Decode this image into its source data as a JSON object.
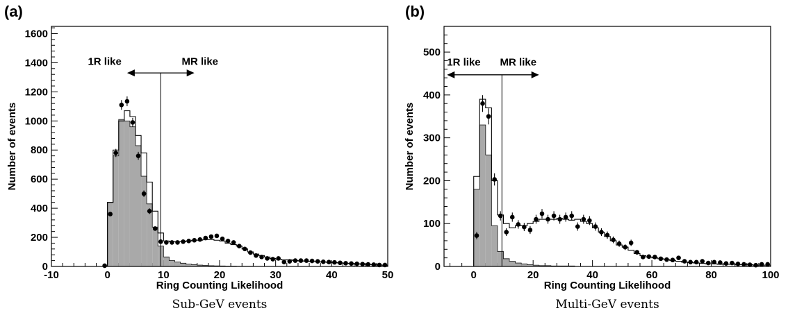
{
  "chart_data": [
    {
      "type": "histogram",
      "panel_label": "(a)",
      "caption": "Sub-GeV events",
      "xlabel": "Ring Counting Likelihood",
      "ylabel": "Number of events",
      "xlim": [
        -10,
        50
      ],
      "ylim": [
        0,
        1650
      ],
      "xticks": [
        -10,
        0,
        10,
        20,
        30,
        40,
        50
      ],
      "yticks": [
        0,
        200,
        400,
        600,
        800,
        1000,
        1200,
        1400,
        1600
      ],
      "cut_x": 9.5,
      "region_labels": {
        "left": "1R like",
        "right": "MR like"
      },
      "arrow": {
        "y": 1330,
        "x_left": 3.5,
        "x_right": 15.5,
        "label_y": 1410,
        "left_label_x": 2.5,
        "right_label_x": 16.5
      },
      "bin_width": 1,
      "bin_edges_start": 0,
      "mc_total": [
        440,
        800,
        1000,
        1070,
        1030,
        900,
        780,
        580,
        380,
        230,
        175,
        170,
        170,
        170,
        175,
        180,
        180,
        185,
        185,
        180,
        175,
        160,
        150,
        140,
        120,
        100,
        85,
        75,
        65,
        55,
        50,
        45,
        45,
        40,
        38,
        36,
        34,
        32,
        30,
        28,
        26,
        24,
        22,
        20,
        18,
        16,
        14,
        12,
        10,
        8
      ],
      "mc_shaded": [
        440,
        760,
        1010,
        1000,
        960,
        830,
        620,
        430,
        270,
        140,
        65,
        40,
        30,
        22,
        16,
        12,
        9,
        7,
        5,
        4,
        3,
        2,
        2,
        1,
        1,
        1,
        0,
        0,
        0,
        0,
        0,
        0,
        0,
        0,
        0,
        0,
        0,
        0,
        0,
        0,
        0,
        0,
        0,
        0,
        0,
        0,
        0,
        0,
        0,
        0
      ],
      "data_points": {
        "x": [
          -0.5,
          0.5,
          1.5,
          2.5,
          3.5,
          4.5,
          5.5,
          6.5,
          7.5,
          8.5,
          9.5,
          10.5,
          11.5,
          12.5,
          13.5,
          14.5,
          15.5,
          16.5,
          17.5,
          18.5,
          19.5,
          20.5,
          21.5,
          22.5,
          23.5,
          24.5,
          25.5,
          26.5,
          27.5,
          28.5,
          29.5,
          30.5,
          31.5,
          32.5,
          33.5,
          34.5,
          35.5,
          36.5,
          37.5,
          38.5,
          39.5,
          40.5,
          41.5,
          42.5,
          43.5,
          44.5,
          45.5,
          46.5,
          47.5,
          48.5,
          49.5
        ],
        "y": [
          5,
          360,
          780,
          1110,
          1135,
          990,
          760,
          500,
          380,
          260,
          170,
          165,
          165,
          165,
          170,
          175,
          180,
          185,
          195,
          205,
          210,
          190,
          175,
          165,
          140,
          120,
          95,
          75,
          65,
          55,
          50,
          55,
          30,
          35,
          40,
          40,
          40,
          38,
          35,
          32,
          30,
          28,
          25,
          22,
          20,
          18,
          16,
          14,
          12,
          10,
          10
        ]
      }
    },
    {
      "type": "histogram",
      "panel_label": "(b)",
      "caption": "Multi-GeV events",
      "xlabel": "Ring Counting Likelihood",
      "ylabel": "Number of events",
      "xlim": [
        -10,
        100
      ],
      "ylim": [
        0,
        560
      ],
      "xticks": [
        0,
        20,
        40,
        60,
        80,
        100
      ],
      "yticks": [
        0,
        100,
        200,
        300,
        400,
        500
      ],
      "cut_x": 9.5,
      "region_labels": {
        "left": "1R like",
        "right": "MR like"
      },
      "arrow": {
        "y": 447,
        "x_left": -9,
        "x_right": 22,
        "label_y": 477,
        "left_label_x": -9,
        "right_label_x": 15
      },
      "bin_width": 2,
      "bin_edges_start": 0,
      "mc_total": [
        210,
        390,
        370,
        200,
        120,
        100,
        90,
        95,
        95,
        100,
        105,
        110,
        110,
        110,
        112,
        110,
        108,
        110,
        105,
        100,
        90,
        80,
        70,
        60,
        50,
        45,
        38,
        30,
        25,
        22,
        20,
        18,
        16,
        14,
        12,
        10,
        9,
        8,
        7,
        6,
        6,
        5,
        5,
        5,
        4,
        4,
        4,
        3,
        3,
        3
      ],
      "mc_shaded": [
        180,
        330,
        260,
        95,
        35,
        18,
        12,
        8,
        6,
        4,
        3,
        2,
        2,
        1,
        1,
        1,
        1,
        0,
        0,
        0,
        0,
        0,
        0,
        0,
        0,
        0,
        0,
        0,
        0,
        0,
        0,
        0,
        0,
        0,
        0,
        0,
        0,
        0,
        0,
        0,
        0,
        0,
        0,
        0,
        0,
        0,
        0,
        0,
        0,
        0
      ],
      "data_points": {
        "x": [
          1,
          3,
          5,
          7,
          9,
          11,
          13,
          15,
          17,
          19,
          21,
          23,
          25,
          27,
          29,
          31,
          33,
          35,
          37,
          39,
          41,
          43,
          45,
          47,
          49,
          51,
          53,
          55,
          57,
          59,
          61,
          63,
          65,
          67,
          69,
          71,
          73,
          75,
          77,
          79,
          81,
          83,
          85,
          87,
          89,
          91,
          93,
          95,
          97,
          99
        ],
        "y": [
          72,
          380,
          350,
          203,
          118,
          80,
          115,
          98,
          92,
          85,
          110,
          123,
          110,
          118,
          110,
          115,
          118,
          93,
          110,
          107,
          93,
          80,
          73,
          62,
          53,
          45,
          55,
          33,
          22,
          23,
          22,
          18,
          16,
          15,
          20,
          12,
          10,
          10,
          12,
          8,
          10,
          9,
          7,
          8,
          6,
          5,
          4,
          3,
          5,
          5
        ]
      }
    }
  ]
}
